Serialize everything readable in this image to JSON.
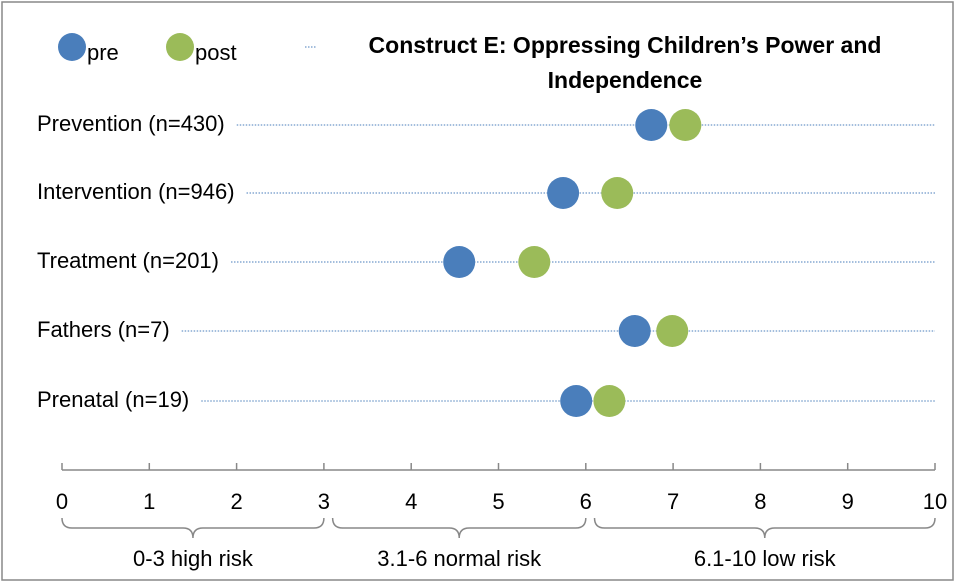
{
  "chart_data": {
    "type": "dot",
    "title_lines": [
      "Construct E: Oppressing Children’s Power and",
      "Independence"
    ],
    "categories": [
      "Prevention (n=430)",
      "Intervention (n=946)",
      "Treatment (n=201)",
      "Fathers (n=7)",
      "Prenatal (n=19)"
    ],
    "series": [
      {
        "name": "pre",
        "color": "#4a7ebb",
        "values": [
          6.75,
          5.74,
          4.55,
          6.56,
          5.89
        ]
      },
      {
        "name": "post",
        "color": "#9bbb59",
        "values": [
          7.14,
          6.36,
          5.41,
          6.99,
          6.27
        ]
      }
    ],
    "xlim": [
      0,
      10
    ],
    "xticks": [
      0,
      1,
      2,
      3,
      4,
      5,
      6,
      7,
      8,
      9,
      10
    ],
    "bands": [
      {
        "label": "0-3 high risk",
        "from": 0,
        "to": 3
      },
      {
        "label": "3.1-6 normal risk",
        "from": 3.1,
        "to": 6
      },
      {
        "label": "6.1-10 low risk",
        "from": 6.1,
        "to": 10
      }
    ]
  }
}
